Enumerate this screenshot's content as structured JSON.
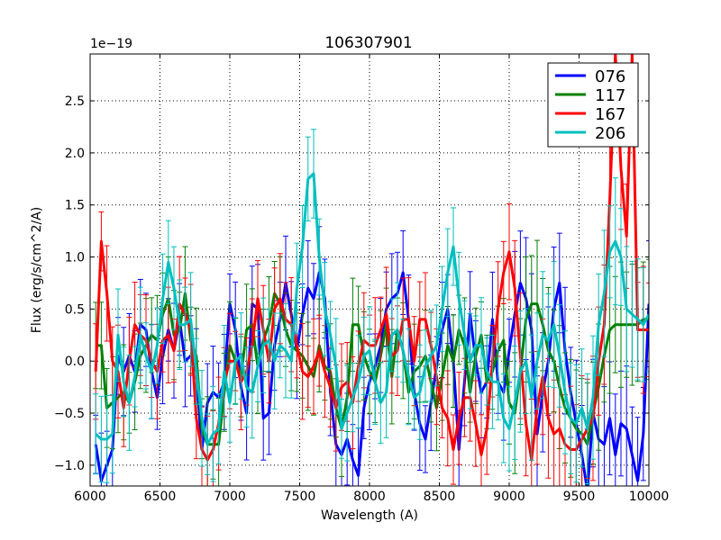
{
  "chart_data": {
    "type": "line",
    "title": "106307901",
    "xlabel": "Wavelength (A)",
    "ylabel": "Flux (erg/s/cm^2/A)",
    "y_offset_label": "1e−19",
    "xlim": [
      6000,
      10000
    ],
    "ylim": [
      -1.2,
      2.95
    ],
    "xticks": [
      6000,
      6500,
      7000,
      7500,
      8000,
      8500,
      9000,
      9500,
      10000
    ],
    "yticks": [
      -1.0,
      -0.5,
      0.0,
      0.5,
      1.0,
      1.5,
      2.0,
      2.5
    ],
    "ytick_labels": [
      "−1.0",
      "−0.5",
      "0.0",
      "0.5",
      "1.0",
      "1.5",
      "2.0",
      "2.5"
    ],
    "grid": true,
    "legend_position": "top-right",
    "x": [
      6040,
      6080,
      6120,
      6160,
      6200,
      6240,
      6280,
      6320,
      6360,
      6400,
      6440,
      6480,
      6520,
      6560,
      6600,
      6640,
      6680,
      6720,
      6760,
      6800,
      6840,
      6880,
      6920,
      6960,
      7000,
      7040,
      7080,
      7120,
      7160,
      7200,
      7240,
      7280,
      7320,
      7360,
      7400,
      7440,
      7480,
      7520,
      7560,
      7600,
      7640,
      7680,
      7720,
      7760,
      7800,
      7840,
      7880,
      7920,
      7960,
      8000,
      8040,
      8080,
      8120,
      8160,
      8200,
      8240,
      8280,
      8320,
      8360,
      8400,
      8440,
      8480,
      8520,
      8560,
      8600,
      8640,
      8680,
      8720,
      8760,
      8800,
      8840,
      8880,
      8920,
      8960,
      9000,
      9040,
      9080,
      9120,
      9160,
      9200,
      9240,
      9280,
      9320,
      9360,
      9400,
      9440,
      9480,
      9520,
      9560,
      9600,
      9640,
      9680,
      9720,
      9760,
      9800,
      9840,
      9880,
      9920,
      9960,
      10000
    ],
    "series": [
      {
        "name": "076",
        "color": "#0000ff",
        "values": [
          -0.8,
          -1.15,
          -1.0,
          -0.85,
          0.05,
          -0.1,
          0.05,
          -0.1,
          0.35,
          0.3,
          -0.1,
          -0.35,
          0.05,
          0.3,
          0.1,
          0.4,
          0.0,
          0.05,
          -0.1,
          -0.85,
          -0.4,
          -0.3,
          -0.35,
          -0.2,
          0.55,
          0.3,
          -0.25,
          -0.5,
          0.55,
          0.5,
          -0.55,
          -0.5,
          0.15,
          0.4,
          0.75,
          0.45,
          0.1,
          0.45,
          0.7,
          0.6,
          0.85,
          0.6,
          -0.3,
          -0.8,
          -0.9,
          -0.75,
          -0.95,
          -1.1,
          -0.45,
          -0.2,
          -0.05,
          0.15,
          0.5,
          0.6,
          0.65,
          0.85,
          0.4,
          -0.3,
          -0.6,
          -0.75,
          -0.4,
          -0.05,
          0.3,
          0.5,
          0.0,
          -0.85,
          -0.2,
          0.45,
          0.0,
          -0.3,
          -0.2,
          0.4,
          -0.2,
          -0.3,
          0.1,
          0.45,
          0.75,
          0.6,
          0.3,
          -0.7,
          -0.3,
          0.0,
          0.5,
          0.75,
          0.1,
          -0.3,
          -0.6,
          -0.9,
          -1.25,
          -0.5,
          -0.75,
          -0.8,
          -0.55,
          -0.9,
          -0.6,
          -0.65,
          -0.9,
          -1.15,
          -0.7,
          0.55
        ]
      },
      {
        "name": "117",
        "color": "#008000",
        "values": [
          0.15,
          0.15,
          -0.45,
          -0.4,
          -0.35,
          -0.3,
          -0.4,
          -0.2,
          0.05,
          0.15,
          0.25,
          0.2,
          0.45,
          0.6,
          0.25,
          0.3,
          0.65,
          0.2,
          0.05,
          -0.65,
          -0.8,
          -0.8,
          -0.8,
          -0.3,
          0.15,
          0.0,
          -0.15,
          0.3,
          0.35,
          -0.05,
          0.2,
          0.35,
          0.65,
          0.55,
          0.3,
          0.15,
          0.1,
          0.05,
          -0.05,
          -0.15,
          0.15,
          -0.05,
          -0.1,
          -0.45,
          -0.65,
          -0.35,
          0.35,
          0.35,
          0.05,
          -0.1,
          -0.2,
          0.05,
          0.35,
          -0.15,
          0.3,
          0.1,
          -0.3,
          -0.1,
          -0.05,
          0.05,
          -0.2,
          -0.45,
          -0.15,
          0.15,
          0.0,
          0.3,
          0.15,
          -0.3,
          0.05,
          0.25,
          -0.2,
          -0.1,
          0.1,
          0.2,
          -0.4,
          -0.5,
          -0.1,
          0.4,
          0.55,
          0.55,
          0.35,
          0.1,
          0.0,
          -0.25,
          -0.45,
          -0.55,
          -0.65,
          -0.7,
          -0.8,
          -0.5,
          -0.25,
          0.05,
          0.3,
          0.35,
          0.35,
          0.35,
          0.35,
          0.35,
          0.4,
          0.4
        ]
      },
      {
        "name": "167",
        "color": "#ff0000",
        "values": [
          -0.1,
          1.15,
          0.65,
          0.0,
          -0.1,
          -0.45,
          0.0,
          0.35,
          0.25,
          0.2,
          0.0,
          -0.1,
          0.2,
          0.25,
          0.1,
          0.55,
          0.45,
          0.3,
          -0.55,
          -0.85,
          -0.95,
          -0.85,
          -0.6,
          -0.2,
          0.0,
          0.0,
          -0.2,
          -0.1,
          0.15,
          0.6,
          0.3,
          0.0,
          0.5,
          0.6,
          0.4,
          0.35,
          0.15,
          -0.1,
          -0.15,
          -0.05,
          0.1,
          -0.1,
          -0.25,
          -0.45,
          -0.25,
          -0.2,
          -0.4,
          -0.05,
          0.2,
          0.15,
          0.15,
          0.3,
          0.45,
          0.05,
          0.1,
          0.4,
          0.4,
          0.0,
          0.4,
          0.4,
          0.15,
          -0.15,
          -0.45,
          -0.55,
          -0.85,
          -0.55,
          -0.35,
          -0.35,
          -0.6,
          -0.9,
          -0.65,
          0.0,
          0.5,
          0.85,
          1.05,
          0.7,
          0.05,
          -0.6,
          -0.95,
          -0.45,
          -0.15,
          -0.55,
          -0.7,
          -0.65,
          -0.8,
          -0.85,
          -0.85,
          -0.75,
          -0.65,
          -0.55,
          0.0,
          0.35,
          1.55,
          2.95,
          1.85,
          1.2,
          2.95,
          0.3,
          0.3,
          0.3
        ]
      },
      {
        "name": "206",
        "color": "#00bfbf",
        "values": [
          -0.7,
          -0.75,
          -0.75,
          -0.7,
          0.25,
          -0.2,
          -0.4,
          -0.15,
          0.25,
          0.05,
          -0.1,
          0.15,
          0.6,
          0.95,
          0.7,
          0.35,
          0.35,
          0.4,
          -0.1,
          -0.55,
          -0.8,
          -0.7,
          -0.65,
          -0.1,
          -0.4,
          0.0,
          0.05,
          -0.25,
          -0.3,
          -0.05,
          0.15,
          0.2,
          0.0,
          0.15,
          0.1,
          0.0,
          0.7,
          1.1,
          1.75,
          1.8,
          1.0,
          0.5,
          0.25,
          -0.05,
          -0.65,
          -0.5,
          -0.35,
          -0.2,
          0.05,
          0.1,
          -0.2,
          -0.4,
          -0.3,
          0.25,
          0.3,
          0.1,
          -0.15,
          -0.35,
          -0.3,
          -0.05,
          0.05,
          0.15,
          0.5,
          0.85,
          1.1,
          0.6,
          0.25,
          0.0,
          0.15,
          0.15,
          -0.1,
          -0.2,
          -0.2,
          -0.55,
          -0.65,
          -0.4,
          -0.1,
          0.0,
          -0.35,
          0.0,
          0.25,
          0.2,
          0.35,
          0.05,
          -0.3,
          -0.55,
          -0.6,
          -0.45,
          -0.65,
          -0.35,
          0.35,
          0.65,
          1.05,
          1.15,
          1.0,
          0.5,
          0.45,
          0.4,
          0.35,
          0.45
        ]
      }
    ]
  }
}
